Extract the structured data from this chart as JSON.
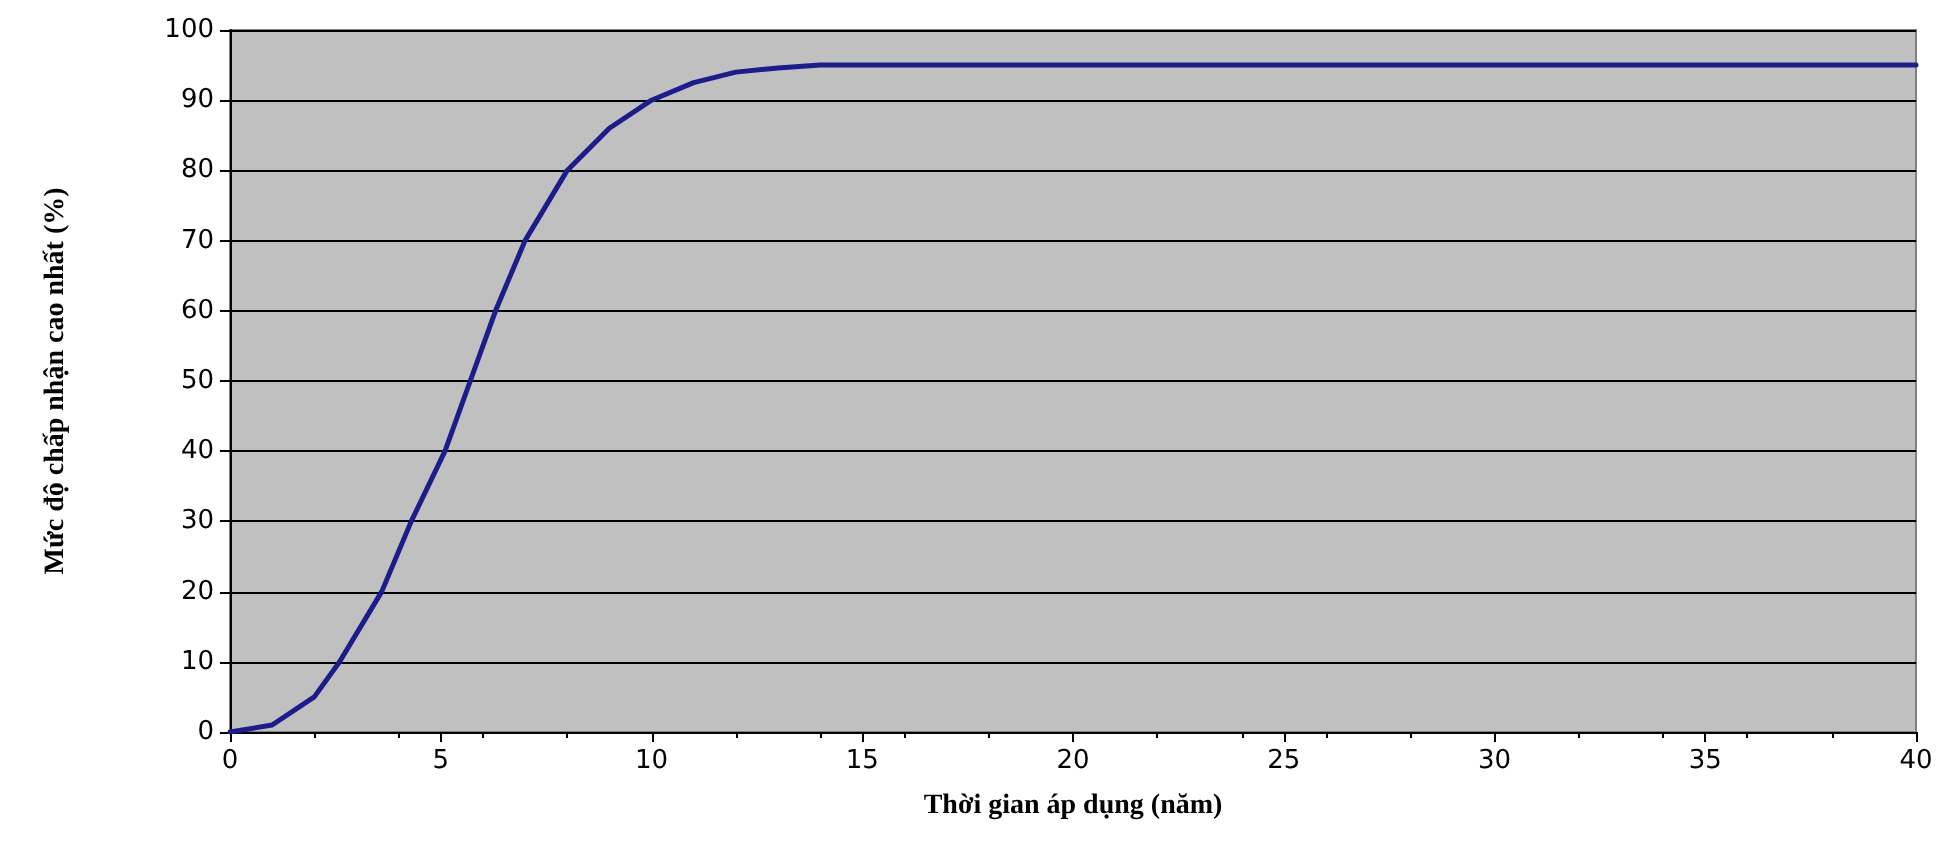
{
  "chart_data": {
    "type": "line",
    "xlabel": "Thời gian áp dụng (năm)",
    "ylabel": "Mức độ chấp nhận cao nhất (%)",
    "x": [
      0,
      1,
      2,
      2.6,
      3.6,
      4.3,
      5.1,
      5.7,
      6.3,
      7,
      8,
      9,
      10,
      11,
      12,
      13,
      14,
      15,
      20,
      30,
      40
    ],
    "series": [
      {
        "color": "#1c1c8a",
        "values": [
          0,
          1,
          5,
          10,
          20,
          30,
          40,
          50,
          60,
          70,
          80,
          86,
          90,
          92.5,
          94,
          94.6,
          95,
          95,
          95,
          95,
          95
        ]
      }
    ],
    "xlim": [
      0,
      40
    ],
    "xticks": [
      0,
      5,
      10,
      15,
      20,
      25,
      30,
      35,
      40
    ],
    "ylim": [
      0,
      100
    ],
    "yticks": [
      0,
      10,
      20,
      30,
      40,
      50,
      60,
      70,
      80,
      90,
      100
    ],
    "grid": "y",
    "marker": "none",
    "line_style": "solid"
  }
}
